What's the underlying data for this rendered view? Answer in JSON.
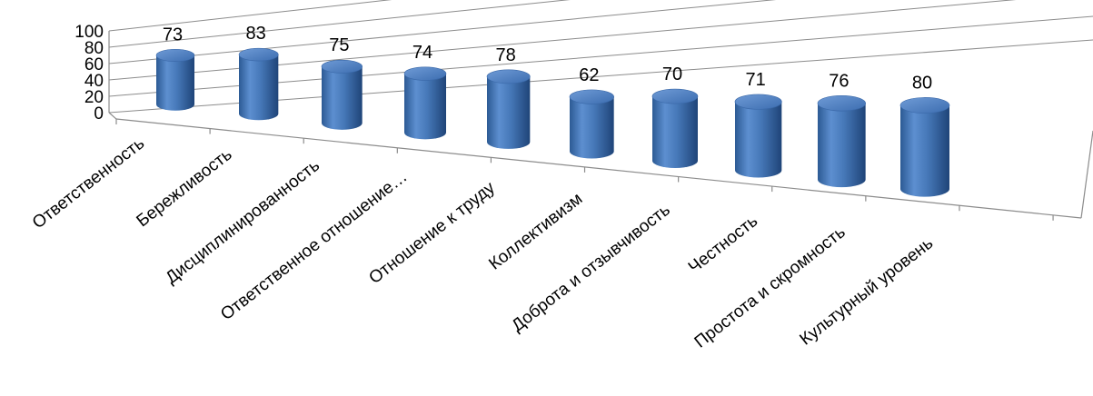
{
  "chart_data": {
    "type": "bar",
    "style": "3d-cylinder",
    "categories": [
      "Ответственность",
      "Бережливость",
      "Дисциплинированность",
      "Ответственное отношение…",
      "Отношение к труду",
      "Коллективизм",
      "Доброта и отзывчивость",
      "Честность",
      "Простота и скромность",
      "Культурный уровень"
    ],
    "values": [
      73,
      83,
      75,
      74,
      78,
      62,
      70,
      71,
      76,
      80
    ],
    "data_labels": [
      "73",
      "83",
      "75",
      "74",
      "78",
      "62",
      "70",
      "71",
      "76",
      "80"
    ],
    "ylim": [
      0,
      100
    ],
    "yticks": [
      "0",
      "20",
      "40",
      "60",
      "80",
      "100"
    ],
    "grid": true,
    "legend": "none",
    "colors": {
      "bar": "#4a7ebb",
      "bar_dark": "#22457a",
      "bar_light": "#8fb3e3",
      "grid": "#8c8c8c"
    }
  }
}
